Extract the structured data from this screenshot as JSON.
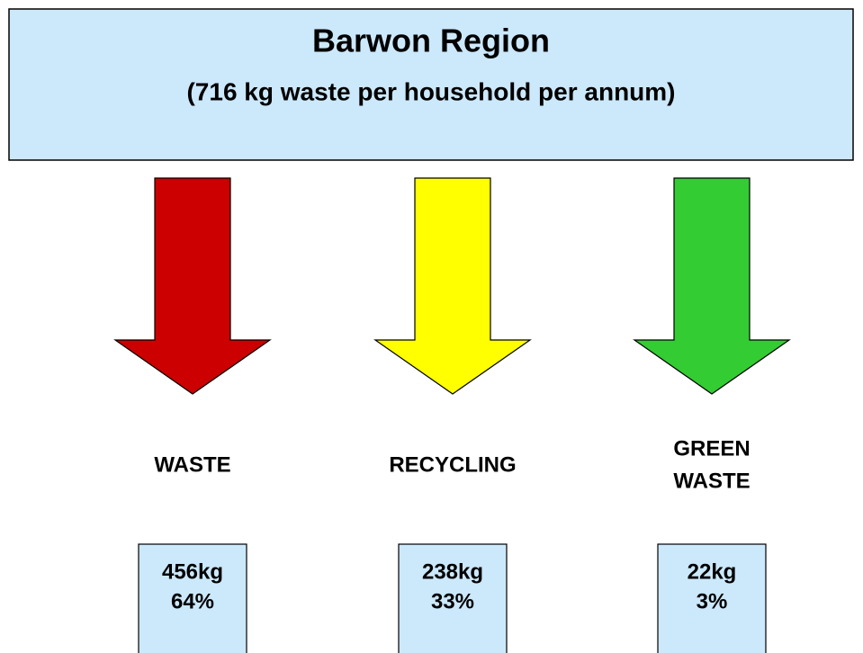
{
  "header": {
    "title": "Barwon Region",
    "subtitle": "(716 kg waste per household per annum)"
  },
  "streams": [
    {
      "label_lines": [
        "WASTE"
      ],
      "amount": "456kg",
      "share": "64%",
      "color": "#cc0000"
    },
    {
      "label_lines": [
        "RECYCLING"
      ],
      "amount": "238kg",
      "share": "33%",
      "color": "#ffff00"
    },
    {
      "label_lines": [
        "GREEN",
        "WASTE"
      ],
      "amount": "22kg",
      "share": "3%",
      "color": "#33cc33"
    }
  ]
}
